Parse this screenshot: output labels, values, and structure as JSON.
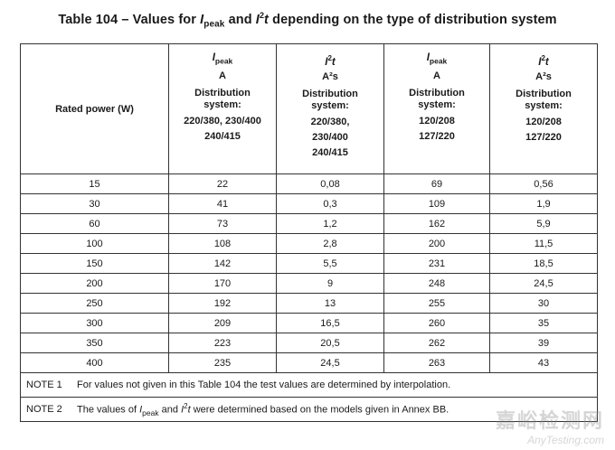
{
  "title": {
    "prefix": "Table 104 – Values for ",
    "ipeak_i": "I",
    "ipeak_sub": "peak",
    "and": " and ",
    "i2t_i": "I",
    "i2t_sup": "2",
    "i2t_t": "t",
    "suffix": " depending on the type of distribution system"
  },
  "header": {
    "rated_power": "Rated power (W)",
    "cols": [
      {
        "sym": "I",
        "sub": "peak",
        "sup": "",
        "t": "",
        "unit": "A",
        "ds": [
          "Distribution",
          "system:"
        ],
        "volts": [
          "220/380, 230/400",
          "240/415"
        ]
      },
      {
        "sym": "I",
        "sub": "",
        "sup": "2",
        "t": "t",
        "unit": "A²s",
        "ds": [
          "Distribution",
          "system:"
        ],
        "volts": [
          "220/380,",
          "230/400",
          "240/415"
        ]
      },
      {
        "sym": "I",
        "sub": "peak",
        "sup": "",
        "t": "",
        "unit": "A",
        "ds": [
          "Distribution",
          "system:"
        ],
        "volts": [
          "120/208",
          "127/220"
        ]
      },
      {
        "sym": "I",
        "sub": "",
        "sup": "2",
        "t": "t",
        "unit": "A²s",
        "ds": [
          "Distribution",
          "system:"
        ],
        "volts": [
          "120/208",
          "127/220"
        ]
      }
    ]
  },
  "rows": [
    [
      "15",
      "22",
      "0,08",
      "69",
      "0,56"
    ],
    [
      "30",
      "41",
      "0,3",
      "109",
      "1,9"
    ],
    [
      "60",
      "73",
      "1,2",
      "162",
      "5,9"
    ],
    [
      "100",
      "108",
      "2,8",
      "200",
      "11,5"
    ],
    [
      "150",
      "142",
      "5,5",
      "231",
      "18,5"
    ],
    [
      "200",
      "170",
      "9",
      "248",
      "24,5"
    ],
    [
      "250",
      "192",
      "13",
      "255",
      "30"
    ],
    [
      "300",
      "209",
      "16,5",
      "260",
      "35"
    ],
    [
      "350",
      "223",
      "20,5",
      "262",
      "39"
    ],
    [
      "400",
      "235",
      "24,5",
      "263",
      "43"
    ]
  ],
  "notes": {
    "note1_label": "NOTE 1",
    "note1_text": "For values not given in this Table 104 the test values are determined by interpolation.",
    "note2_label": "NOTE 2",
    "note2_pre": "The values of ",
    "note2_i": "I",
    "note2_sub": "peak",
    "note2_and": " and ",
    "note2_i2": "I",
    "note2_sup": "2",
    "note2_t": "t",
    "note2_post": " were determined based on the models given in Annex BB."
  },
  "watermark": {
    "cn": "嘉峪检测网",
    "en": "AnyTesting.com"
  }
}
